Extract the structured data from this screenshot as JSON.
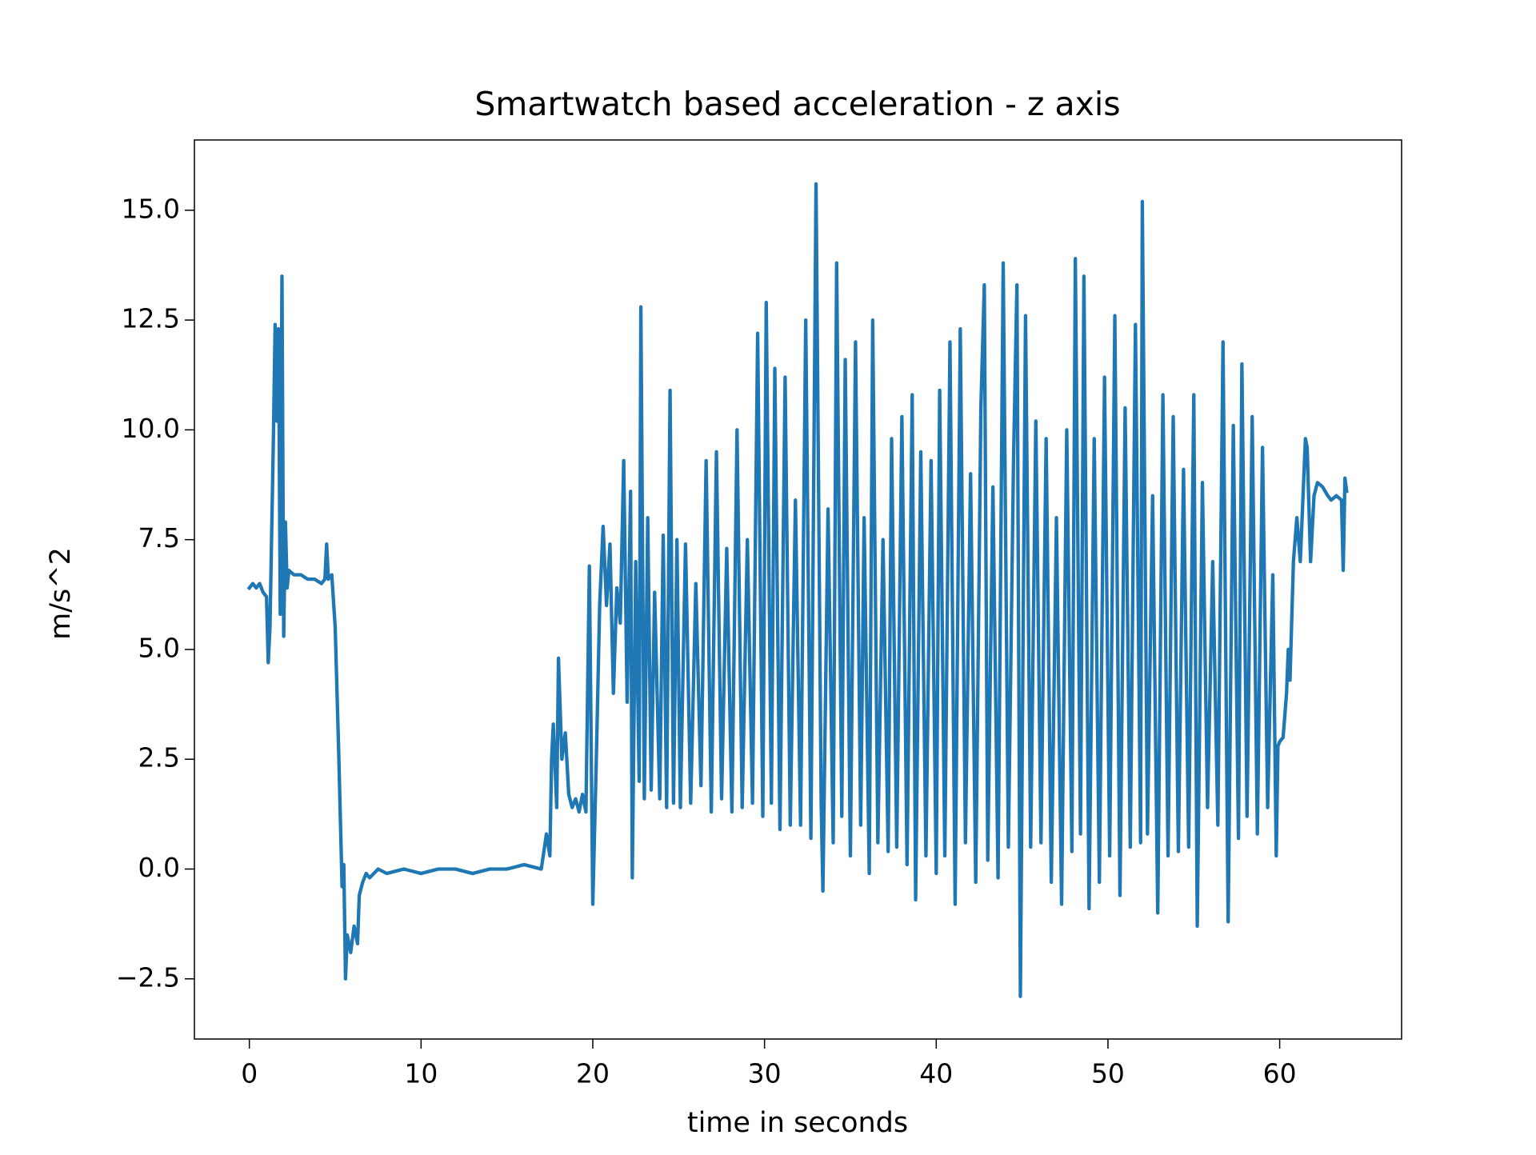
{
  "chart_data": {
    "type": "line",
    "title": "Smartwatch based acceleration - z axis",
    "xlabel": "time in seconds",
    "ylabel": "m/s^2",
    "color": "#1f77b4",
    "xlim": [
      -3.2,
      67.1
    ],
    "ylim": [
      -3.87,
      16.6
    ],
    "xticks": [
      0,
      10,
      20,
      30,
      40,
      50,
      60
    ],
    "yticks": [
      {
        "value": -2.5,
        "label": "−2.5"
      },
      {
        "value": 0,
        "label": "0.0"
      },
      2.5,
      {
        "value": 5,
        "label": "5.0"
      },
      7.5,
      {
        "value": 10,
        "label": "10.0"
      },
      12.5,
      {
        "value": 15,
        "label": "15.0"
      }
    ],
    "x": [
      0,
      0.2,
      0.4,
      0.6,
      0.8,
      1.0,
      1.1,
      1.2,
      1.4,
      1.5,
      1.6,
      1.7,
      1.8,
      1.9,
      2.0,
      2.1,
      2.2,
      2.3,
      2.6,
      3.0,
      3.4,
      3.8,
      4.2,
      4.4,
      4.5,
      4.6,
      4.8,
      5.0,
      5.2,
      5.4,
      5.5,
      5.6,
      5.7,
      5.9,
      6.1,
      6.3,
      6.4,
      6.6,
      6.8,
      7.0,
      7.5,
      8,
      9,
      10,
      11,
      12,
      13,
      14,
      15,
      16,
      17,
      17.3,
      17.5,
      17.6,
      17.7,
      17.9,
      18.0,
      18.2,
      18.4,
      18.6,
      18.8,
      19.0,
      19.2,
      19.4,
      19.6,
      19.8,
      20.0,
      20.2,
      20.4,
      20.6,
      20.8,
      21.0,
      21.2,
      21.4,
      21.6,
      21.8,
      22.0,
      22.2,
      22.3,
      22.5,
      22.7,
      22.8,
      23.0,
      23.2,
      23.4,
      23.6,
      23.9,
      24.1,
      24.3,
      24.5,
      24.7,
      24.9,
      25.1,
      25.4,
      25.7,
      26.0,
      26.3,
      26.6,
      26.9,
      27.2,
      27.5,
      27.8,
      28.1,
      28.4,
      28.7,
      29.0,
      29.3,
      29.6,
      29.9,
      30.1,
      30.4,
      30.6,
      30.9,
      31.2,
      31.5,
      31.8,
      32.1,
      32.4,
      32.7,
      33.0,
      33.3,
      33.4,
      33.7,
      34.0,
      34.2,
      34.5,
      34.7,
      35.0,
      35.3,
      35.6,
      35.8,
      36.1,
      36.3,
      36.6,
      36.9,
      37.2,
      37.4,
      37.7,
      38.0,
      38.3,
      38.6,
      38.8,
      39.1,
      39.4,
      39.7,
      40.0,
      40.2,
      40.5,
      40.8,
      41.1,
      41.4,
      41.7,
      42.0,
      42.3,
      42.6,
      42.8,
      43.0,
      43.3,
      43.6,
      43.9,
      44.2,
      44.5,
      44.7,
      44.9,
      45.2,
      45.5,
      45.8,
      46.1,
      46.4,
      46.7,
      47.0,
      47.3,
      47.6,
      47.9,
      48.1,
      48.4,
      48.6,
      48.9,
      49.2,
      49.5,
      49.8,
      50.1,
      50.4,
      50.7,
      51.0,
      51.3,
      51.6,
      51.9,
      52.0,
      52.3,
      52.6,
      52.9,
      53.2,
      53.5,
      53.8,
      54.1,
      54.4,
      54.7,
      55.0,
      55.2,
      55.5,
      55.8,
      56.1,
      56.4,
      56.7,
      57.0,
      57.3,
      57.6,
      57.8,
      58.1,
      58.4,
      58.7,
      59.0,
      59.3,
      59.6,
      59.8,
      59.9,
      60.0,
      60.2,
      60.4,
      60.5,
      60.6,
      60.8,
      61.0,
      61.2,
      61.5,
      61.6,
      61.8,
      62.0,
      62.2,
      62.5,
      62.8,
      63.0,
      63.3,
      63.6,
      63.7,
      63.8,
      63.9
    ],
    "values": [
      6.4,
      6.5,
      6.4,
      6.5,
      6.3,
      6.2,
      4.7,
      5.5,
      9.8,
      12.4,
      10.2,
      12.3,
      5.8,
      13.5,
      5.3,
      7.9,
      6.4,
      6.8,
      6.7,
      6.7,
      6.6,
      6.6,
      6.5,
      6.6,
      7.4,
      6.6,
      6.7,
      5.5,
      2.7,
      -0.4,
      0.1,
      -2.5,
      -1.5,
      -1.9,
      -1.3,
      -1.7,
      -0.6,
      -0.3,
      -0.1,
      -0.2,
      0.0,
      -0.1,
      0.0,
      -0.1,
      0.0,
      0.0,
      -0.1,
      0.0,
      0.0,
      0.1,
      0.0,
      0.8,
      0.3,
      2.5,
      3.3,
      1.4,
      4.8,
      2.5,
      3.1,
      1.7,
      1.4,
      1.6,
      1.3,
      1.7,
      1.3,
      6.9,
      -0.8,
      2.4,
      6.0,
      7.8,
      6.0,
      7.4,
      4.0,
      6.4,
      5.6,
      9.3,
      3.8,
      8.6,
      -0.2,
      7.0,
      2.0,
      12.8,
      1.6,
      8.0,
      1.8,
      6.3,
      1.6,
      7.6,
      1.4,
      10.9,
      1.5,
      7.5,
      1.4,
      7.4,
      1.5,
      6.5,
      1.9,
      9.3,
      1.3,
      9.5,
      1.6,
      7.3,
      1.3,
      10.0,
      1.4,
      7.5,
      1.5,
      12.2,
      1.2,
      12.9,
      1.5,
      11.4,
      0.9,
      11.2,
      1.0,
      8.4,
      1.0,
      12.5,
      0.7,
      15.6,
      1.5,
      -0.5,
      8.2,
      0.6,
      13.8,
      1.2,
      11.6,
      0.3,
      12.0,
      1.0,
      8.0,
      -0.1,
      12.5,
      0.6,
      7.5,
      0.4,
      9.8,
      0.5,
      10.3,
      0.1,
      10.8,
      -0.7,
      9.5,
      0.3,
      9.3,
      -0.1,
      10.9,
      0.3,
      12.0,
      -0.8,
      12.3,
      0.6,
      9.0,
      -0.3,
      10.5,
      13.3,
      0.2,
      8.7,
      -0.2,
      13.8,
      0.5,
      9.3,
      13.3,
      -2.9,
      12.6,
      0.5,
      10.2,
      0.6,
      9.8,
      -0.3,
      8.0,
      -0.8,
      10.0,
      0.4,
      13.9,
      0.8,
      13.5,
      -0.9,
      9.8,
      -0.3,
      11.2,
      0.3,
      12.6,
      -0.6,
      10.5,
      0.5,
      12.4,
      0.6,
      15.2,
      0.8,
      8.5,
      -1.0,
      10.8,
      0.3,
      10.3,
      0.4,
      9.1,
      0.5,
      10.8,
      -1.3,
      8.8,
      1.4,
      7.0,
      1.0,
      12.0,
      -1.2,
      10.1,
      0.7,
      11.5,
      1.2,
      10.3,
      0.8,
      9.6,
      1.4,
      6.7,
      0.3,
      2.8,
      2.9,
      3.0,
      4.0,
      5.0,
      4.3,
      7.0,
      8.0,
      7.0,
      9.8,
      9.6,
      7.0,
      8.5,
      8.8,
      8.7,
      8.5,
      8.4,
      8.5,
      8.4,
      6.8,
      8.9,
      8.6
    ]
  }
}
